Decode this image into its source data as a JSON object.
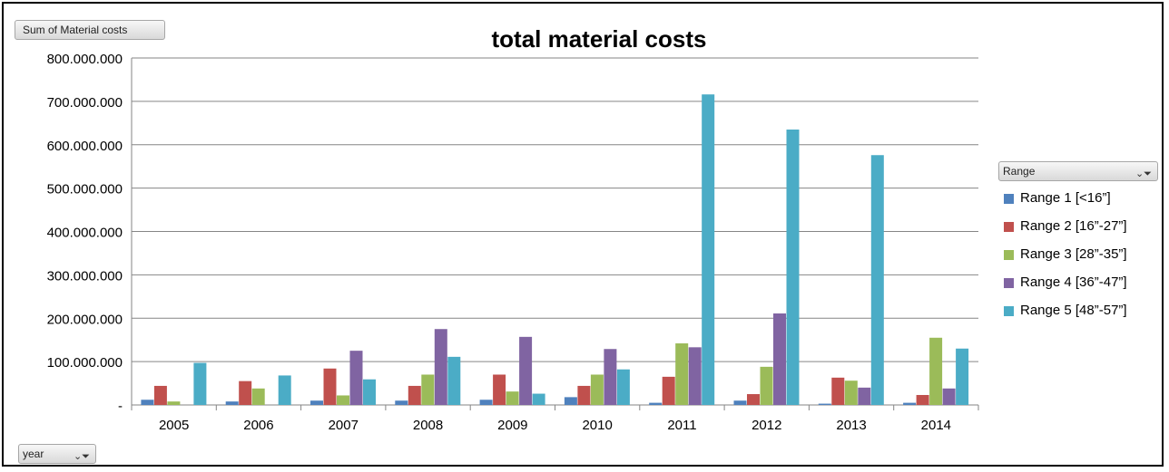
{
  "pivot": {
    "value_field": "Sum of Material costs",
    "legend_field": "Range",
    "axis_field": "year"
  },
  "icons": {
    "filter": "filter-dropdown-icon"
  },
  "chart_data": {
    "type": "bar",
    "title": "total material costs",
    "xlabel": "",
    "ylabel": "",
    "categories": [
      "2005",
      "2006",
      "2007",
      "2008",
      "2009",
      "2010",
      "2011",
      "2012",
      "2013",
      "2014"
    ],
    "ylim": [
      0,
      800000000
    ],
    "yticks": [
      {
        "value": 0,
        "label": "-"
      },
      {
        "value": 100000000,
        "label": "100.000.000"
      },
      {
        "value": 200000000,
        "label": "200.000.000"
      },
      {
        "value": 300000000,
        "label": "300.000.000"
      },
      {
        "value": 400000000,
        "label": "400.000.000"
      },
      {
        "value": 500000000,
        "label": "500.000.000"
      },
      {
        "value": 600000000,
        "label": "600.000.000"
      },
      {
        "value": 700000000,
        "label": "700.000.000"
      },
      {
        "value": 800000000,
        "label": "800.000.000"
      }
    ],
    "grid": true,
    "legend_position": "right",
    "series": [
      {
        "name": "Range 1 [<16”]",
        "color": "#4f81bd",
        "values": [
          12000000,
          8000000,
          10000000,
          10000000,
          12000000,
          18000000,
          5000000,
          10000000,
          3000000,
          5000000
        ]
      },
      {
        "name": "Range 2 [16”-27”]",
        "color": "#c0504d",
        "values": [
          44000000,
          55000000,
          84000000,
          44000000,
          70000000,
          44000000,
          65000000,
          25000000,
          63000000,
          23000000
        ]
      },
      {
        "name": "Range 3 [28”-35”]",
        "color": "#9bbb59",
        "values": [
          8000000,
          38000000,
          22000000,
          70000000,
          31000000,
          70000000,
          142000000,
          88000000,
          56000000,
          155000000
        ]
      },
      {
        "name": "Range 4 [36”-47”]",
        "color": "#8064a2",
        "values": [
          0,
          0,
          125000000,
          175000000,
          157000000,
          129000000,
          133000000,
          211000000,
          40000000,
          38000000
        ]
      },
      {
        "name": "Range 5 [48”-57”]",
        "color": "#4bacc6",
        "values": [
          97000000,
          68000000,
          59000000,
          111000000,
          26000000,
          82000000,
          716000000,
          635000000,
          576000000,
          130000000
        ]
      }
    ]
  }
}
